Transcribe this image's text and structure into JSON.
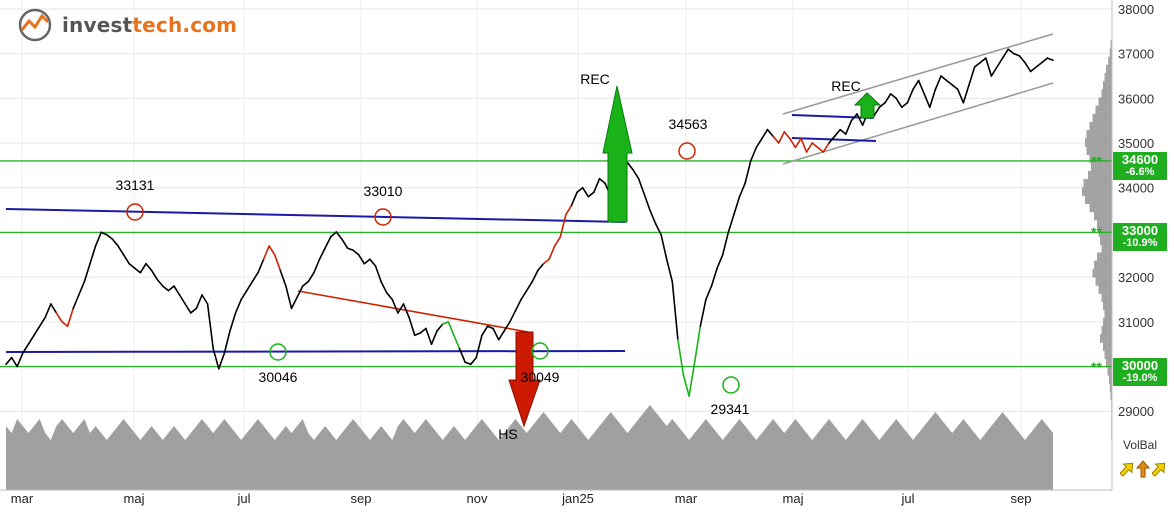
{
  "brand": {
    "name_prefix": "invest",
    "name_suffix": "tech.com",
    "accent": "#e8731c"
  },
  "volume_indicator": {
    "label": "VolBal",
    "icons": [
      "up-arrow-icon",
      "up-arrow-icon",
      "up-arrow-icon"
    ]
  },
  "chart_data": {
    "type": "line",
    "x_ticks": [
      "mar",
      "maj",
      "jul",
      "sep",
      "nov",
      "jan25",
      "mar",
      "maj",
      "jul",
      "sep"
    ],
    "y_ticks": [
      29000,
      30000,
      31000,
      32000,
      33000,
      34000,
      35000,
      36000,
      37000,
      38000
    ],
    "ylim": [
      28200,
      38200
    ],
    "series": [
      {
        "values": [
          30050,
          30200,
          30000,
          30300,
          30500,
          30700,
          30900,
          31100,
          31400,
          31200,
          31000,
          30900,
          31300,
          31600,
          31900,
          32300,
          32700,
          33000,
          32950,
          32850,
          32700,
          32500,
          32300,
          32200,
          32100,
          32300,
          32150,
          31950,
          31800,
          31700,
          31800,
          31600,
          31400,
          31200,
          31300,
          31600,
          31400,
          30400,
          29950,
          30300,
          30800,
          31200,
          31500,
          31700,
          31900,
          32100,
          32400,
          32700,
          32500,
          32150,
          31800,
          31300,
          31550,
          31800,
          31900,
          32100,
          32400,
          32650,
          32900,
          33010,
          32850,
          32650,
          32600,
          32500,
          32300,
          32400,
          32250,
          31900,
          31650,
          31500,
          31200,
          31400,
          31100,
          30700,
          30750,
          30850,
          30500,
          30800,
          30950,
          31000,
          30700,
          30400,
          30100,
          30049,
          30200,
          30700,
          30900,
          30850,
          30600,
          30800,
          31000,
          31250,
          31500,
          31700,
          31900,
          32150,
          32300,
          32400,
          32700,
          32900,
          33400,
          33600,
          33900,
          34000,
          33800,
          33900,
          34200,
          34100,
          33800,
          34300,
          34500,
          34563,
          34400,
          34200,
          33850,
          33500,
          33200,
          32950,
          32400,
          31900,
          30600,
          29800,
          29341,
          30100,
          30900,
          31500,
          31800,
          32200,
          32500,
          33000,
          33400,
          33800,
          34100,
          34600,
          34900,
          35100,
          35300,
          35150,
          35000,
          35250,
          35100,
          34900,
          35100,
          34800,
          35000,
          34900,
          34800,
          35000,
          35150,
          35300,
          35200,
          35500,
          35650,
          35400,
          35700,
          35600,
          35800,
          35900,
          36100,
          36000,
          35800,
          35900,
          36200,
          36400,
          36100,
          35800,
          36200,
          36500,
          36400,
          36300,
          36200,
          35900,
          36300,
          36700,
          36800,
          36900,
          36500,
          36700,
          36900,
          37100,
          37000,
          36950,
          36800,
          36600,
          36700,
          36800,
          36900,
          36850
        ]
      }
    ],
    "volume": [
      7,
      6,
      8,
      7,
      6,
      7,
      8,
      6,
      5,
      7,
      8,
      7,
      6,
      7,
      8,
      6,
      7,
      6,
      5,
      6,
      7,
      8,
      7,
      6,
      5,
      6,
      7,
      6,
      5,
      6,
      7,
      6,
      5,
      6,
      7,
      8,
      7,
      6,
      7,
      8,
      7,
      6,
      5,
      6,
      7,
      8,
      7,
      6,
      5,
      6,
      7,
      6,
      7,
      8,
      6,
      5,
      6,
      7,
      6,
      5,
      6,
      7,
      8,
      7,
      6,
      5,
      6,
      7,
      6,
      5,
      7,
      8,
      7,
      6,
      7,
      8,
      7,
      6,
      5,
      6,
      7,
      6,
      5,
      6,
      7,
      8,
      7,
      6,
      5,
      6,
      7,
      8,
      7,
      6,
      7,
      8,
      9,
      8,
      7,
      6,
      7,
      8,
      7,
      6,
      5,
      6,
      7,
      8,
      9,
      8,
      7,
      6,
      7,
      8,
      9,
      10,
      9,
      8,
      7,
      8,
      7,
      6,
      5,
      6,
      7,
      8,
      7,
      6,
      5,
      6,
      7,
      8,
      7,
      6,
      5,
      6,
      7,
      8,
      7,
      6,
      7,
      8,
      7,
      6,
      5,
      6,
      7,
      8,
      7,
      6,
      5,
      6,
      7,
      8,
      7,
      6,
      5,
      6,
      7,
      8,
      7,
      6,
      5,
      6,
      7,
      8,
      9,
      8,
      7,
      6,
      7,
      8,
      7,
      6,
      5,
      6,
      7,
      8,
      9,
      8,
      7,
      6,
      5,
      6,
      7,
      8,
      7,
      6
    ],
    "support_resistance": [
      {
        "value": 34600,
        "label": "34600",
        "pct": "-6.6%"
      },
      {
        "value": 33000,
        "label": "33000",
        "pct": "-10.9%"
      },
      {
        "value": 30000,
        "label": "30000",
        "pct": "-19.0%"
      }
    ],
    "annotations": [
      {
        "text": "33131",
        "kind": "top"
      },
      {
        "text": "33010",
        "kind": "top"
      },
      {
        "text": "30046",
        "kind": "bottom"
      },
      {
        "text": "30049",
        "kind": "bottom"
      },
      {
        "text": "34563",
        "kind": "top"
      },
      {
        "text": "29341",
        "kind": "bottom"
      },
      {
        "text": "REC",
        "kind": "signal-up"
      },
      {
        "text": "REC",
        "kind": "signal-up"
      },
      {
        "text": "HS",
        "kind": "signal-down"
      }
    ],
    "volume_profile": [
      2,
      3,
      5,
      8,
      10,
      12,
      14,
      18,
      22,
      26,
      30,
      34,
      36,
      34,
      30,
      28,
      32,
      38,
      40,
      36,
      30,
      24,
      20,
      18,
      16,
      14,
      20,
      24,
      26,
      22,
      18,
      14,
      12,
      10,
      12,
      14,
      16,
      12,
      10,
      8,
      6,
      4,
      3,
      2,
      1,
      1,
      1,
      1,
      1
    ],
    "colors": {
      "price": "#000000",
      "up": "#19b319",
      "down": "#cc2200",
      "trend": "#1a1aa8",
      "support": "#29b329",
      "channel": "#999999",
      "volume": "#a0a0a0"
    }
  }
}
